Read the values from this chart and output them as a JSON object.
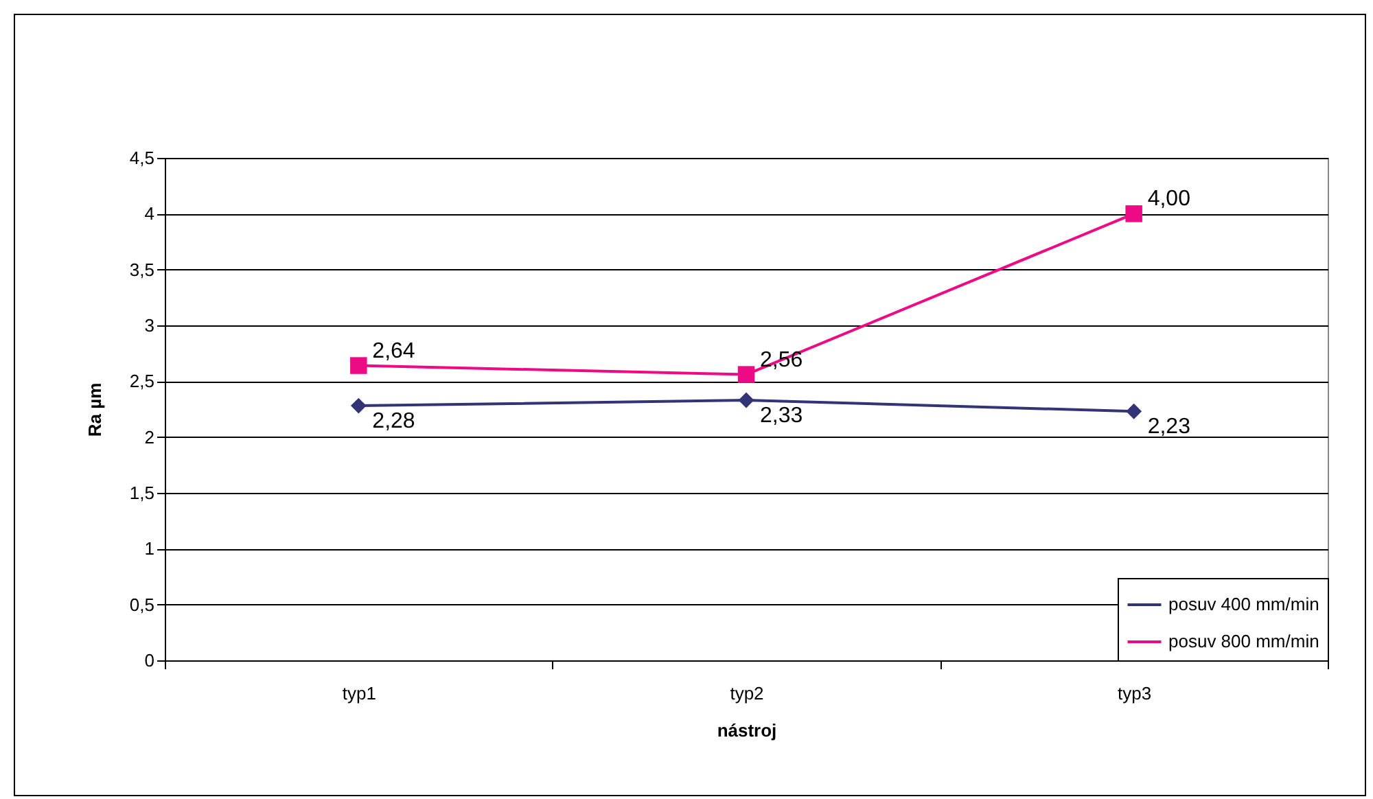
{
  "chart_data": {
    "type": "line",
    "xlabel": "nástroj",
    "ylabel": "Ra µm",
    "categories": [
      "typ1",
      "typ2",
      "typ3"
    ],
    "series": [
      {
        "name": "posuv 400 mm/min",
        "color": "#333377",
        "marker": "diamond",
        "values": [
          2.28,
          2.33,
          2.23
        ],
        "value_labels": [
          "2,28",
          "2,33",
          "2,23"
        ]
      },
      {
        "name": "posuv 800 mm/min",
        "color": "#ee0a84",
        "marker": "square",
        "values": [
          2.64,
          2.56,
          4.0
        ],
        "value_labels": [
          "2,64",
          "2,56",
          "4,00"
        ]
      }
    ],
    "ylim": [
      0,
      4.5
    ],
    "yticks": [
      0,
      {
        "value": 0.5,
        "label": "0,5"
      },
      1,
      {
        "value": 1.5,
        "label": "1,5"
      },
      2,
      {
        "value": 2.5,
        "label": "2,5"
      },
      3,
      {
        "value": 3.5,
        "label": "3,5"
      },
      4,
      {
        "value": 4.5,
        "label": "4,5"
      }
    ],
    "grid": "y",
    "legend": "bottom right"
  }
}
